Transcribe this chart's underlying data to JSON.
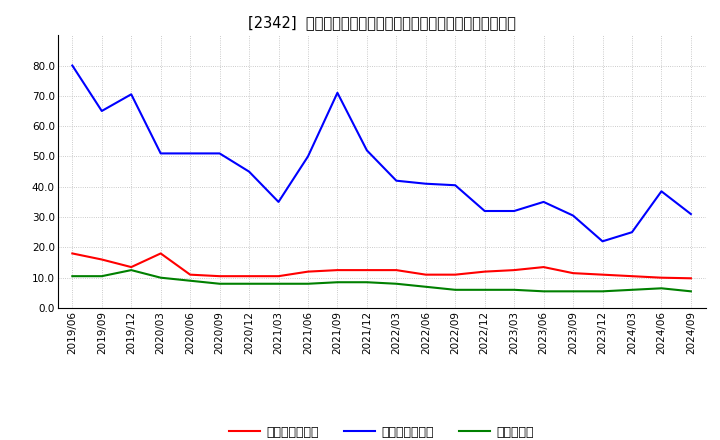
{
  "title": "[2342]  売上債権回転率、買入債務回転率、在庫回転率の推移",
  "x_labels": [
    "2019/06",
    "2019/09",
    "2019/12",
    "2020/03",
    "2020/06",
    "2020/09",
    "2020/12",
    "2021/03",
    "2021/06",
    "2021/09",
    "2021/12",
    "2022/03",
    "2022/06",
    "2022/09",
    "2022/12",
    "2023/03",
    "2023/06",
    "2023/09",
    "2023/12",
    "2024/03",
    "2024/06",
    "2024/09"
  ],
  "receivables_turnover": [
    18.0,
    16.0,
    13.5,
    18.0,
    11.0,
    10.5,
    10.5,
    10.5,
    12.0,
    12.5,
    12.5,
    12.5,
    11.0,
    11.0,
    12.0,
    12.5,
    13.5,
    11.5,
    11.0,
    10.5,
    10.0,
    9.8
  ],
  "payables_turnover": [
    80.0,
    65.0,
    70.5,
    51.0,
    51.0,
    51.0,
    45.0,
    35.0,
    50.0,
    71.0,
    52.0,
    42.0,
    41.0,
    40.5,
    32.0,
    32.0,
    35.0,
    30.5,
    22.0,
    25.0,
    38.5,
    31.0
  ],
  "inventory_turnover": [
    10.5,
    10.5,
    12.5,
    10.0,
    9.0,
    8.0,
    8.0,
    8.0,
    8.0,
    8.5,
    8.5,
    8.0,
    7.0,
    6.0,
    6.0,
    6.0,
    5.5,
    5.5,
    5.5,
    6.0,
    6.5,
    5.5
  ],
  "line_colors": {
    "receivables": "#ff0000",
    "payables": "#0000ff",
    "inventory": "#008000"
  },
  "legend_labels": {
    "receivables": "売上債権回転率",
    "payables": "買入債務回転率",
    "inventory": "在庫回転率"
  },
  "title_bracket": "[2342]",
  "title_main": "売上債権回転率、買入債務回転率、在庫回転率の推移",
  "ylim": [
    0.0,
    90.0
  ],
  "yticks": [
    0.0,
    10.0,
    20.0,
    30.0,
    40.0,
    50.0,
    60.0,
    70.0,
    80.0
  ],
  "background_color": "#ffffff",
  "plot_bg_color": "#ffffff",
  "grid_color": "#aaaaaa",
  "title_fontsize": 10.5,
  "tick_fontsize": 7.5,
  "legend_fontsize": 9
}
